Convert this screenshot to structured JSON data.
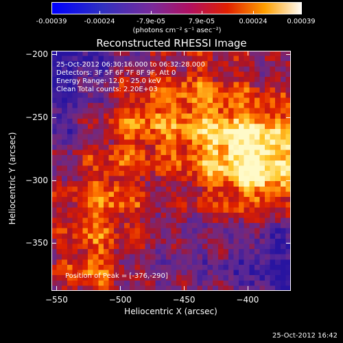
{
  "colorbar": {
    "tick_labels": [
      "-0.00039",
      "-0.00024",
      "-7.9e-05",
      "7.9e-05",
      "0.00024",
      "0.00039"
    ],
    "tick_values": [
      -0.00039,
      -0.00024,
      -7.9e-05,
      7.9e-05,
      0.00024,
      0.00039
    ],
    "units": "(photons cm⁻² s⁻¹ asec⁻²)",
    "range": [
      -0.00039,
      0.00039
    ]
  },
  "plot": {
    "title": "Reconstructed RHESSI Image",
    "annotations": [
      "25-Oct-2012 06:30:16.000 to 06:32:28.000",
      "Detectors: 3F 5F 6F 7F 8F 9F, Att 0",
      "Energy Range: 12.0 - 25.0 keV",
      "Clean     Total counts: 2.20E+03"
    ],
    "peak_label": "Position of Peak = [-376,-290]",
    "footer_timestamp": "25-Oct-2012 16:42"
  },
  "chart_data": {
    "type": "heatmap",
    "title": "Reconstructed RHESSI Image",
    "xlabel": "Heliocentric X (arcsec)",
    "ylabel": "Heliocentric Y (arcsec)",
    "xlim": [
      -554,
      -366
    ],
    "ylim": [
      -388,
      -197
    ],
    "x_ticks": [
      -550,
      -500,
      -450,
      -400
    ],
    "y_ticks": [
      -200,
      -250,
      -300,
      -350
    ],
    "x_tick_labels": [
      "−550",
      "−500",
      "−450",
      "−400"
    ],
    "y_tick_labels": [
      "−200",
      "−250",
      "−300",
      "−350"
    ],
    "colormap": "RHESSI blue-purple-red-yellow-white",
    "colors": {
      "low": "#0000ff",
      "mid_low": "#7a3fb0",
      "mid": "#d01010",
      "high": "#ffaa00",
      "max": "#ffffff"
    },
    "peak_position": [
      -376,
      -290
    ],
    "bright_regions": [
      {
        "x": -400,
        "y": -280,
        "level": "high"
      },
      {
        "x": -376,
        "y": -290,
        "level": "peak"
      },
      {
        "x": -510,
        "y": -315,
        "level": "high"
      },
      {
        "x": -490,
        "y": -260,
        "level": "high"
      },
      {
        "x": -525,
        "y": -370,
        "level": "high"
      },
      {
        "x": -440,
        "y": -330,
        "level": "medium"
      }
    ]
  }
}
